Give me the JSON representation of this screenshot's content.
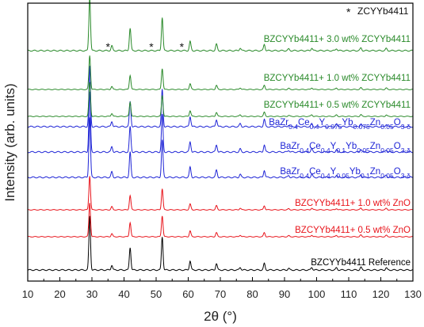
{
  "chart_data": {
    "type": "line",
    "xlabel": "2θ (°)",
    "ylabel": "Intensity (arb. units)",
    "xlim": [
      10,
      130
    ],
    "x_ticks": [
      10,
      20,
      30,
      40,
      50,
      60,
      70,
      80,
      90,
      100,
      110,
      120,
      130
    ],
    "y_ticks_shown": false,
    "legend": {
      "text": "ZCYYb4411",
      "marker": "*",
      "position": "top-right"
    },
    "impurity_marks": [
      35,
      48.5,
      58
    ],
    "peaks": [
      {
        "x": 29.3,
        "h": 1.0
      },
      {
        "x": 36.2,
        "h": 0.09
      },
      {
        "x": 41.9,
        "h": 0.42
      },
      {
        "x": 51.9,
        "h": 0.62
      },
      {
        "x": 60.6,
        "h": 0.17
      },
      {
        "x": 68.8,
        "h": 0.12
      },
      {
        "x": 76.2,
        "h": 0.05
      },
      {
        "x": 83.7,
        "h": 0.12
      },
      {
        "x": 91.3,
        "h": 0.03
      },
      {
        "x": 98.5,
        "h": 0.05
      },
      {
        "x": 106.2,
        "h": 0.04
      },
      {
        "x": 113.8,
        "h": 0.05
      },
      {
        "x": 121.7,
        "h": 0.04
      }
    ],
    "series": [
      {
        "label": "BZCYYb4411 Reference",
        "color": "#000000",
        "scale": 0.9
      },
      {
        "label": "BZCYYb4411+ 0.5 wt% ZnO",
        "color": "#e8141b",
        "scale": 1.15
      },
      {
        "label": "BZCYYb4411+ 1.0 wt% ZnO",
        "color": "#e8141b",
        "scale": 1.15
      },
      {
        "label": "BaZr0.4Ce0.4Y0.05Yb0.1Zn0.05O3-δ",
        "color": "#1e24d6",
        "scale": 0.85,
        "rich": [
          [
            "BaZr",
            ""
          ],
          [
            "0.4",
            "sub"
          ],
          [
            "Ce",
            ""
          ],
          [
            "0.4",
            "sub"
          ],
          [
            "Y",
            ""
          ],
          [
            "0.05",
            "sub"
          ],
          [
            "Yb",
            ""
          ],
          [
            "0.1",
            "sub"
          ],
          [
            "Zn",
            ""
          ],
          [
            "0.05",
            "sub"
          ],
          [
            "O",
            ""
          ],
          [
            "3-δ",
            "sub"
          ]
        ]
      },
      {
        "label": "BaZr0.4Ce0.4Y0.1Yb0.05Zn0.05O3-δ",
        "color": "#1e24d6",
        "scale": 0.85,
        "rich": [
          [
            "BaZr",
            ""
          ],
          [
            "0.4",
            "sub"
          ],
          [
            "Ce",
            ""
          ],
          [
            "0.4",
            "sub"
          ],
          [
            "Y",
            ""
          ],
          [
            "0.1",
            "sub"
          ],
          [
            "Yb",
            ""
          ],
          [
            "0.05",
            "sub"
          ],
          [
            "Zn",
            ""
          ],
          [
            "0.05",
            "sub"
          ],
          [
            "O",
            ""
          ],
          [
            "3-δ",
            "sub"
          ]
        ]
      },
      {
        "label": "BaZr0.4Ce0.4Y0.075Yb0.075Zn0.05O3-δ",
        "color": "#1e24d6",
        "scale": 0.85,
        "rich": [
          [
            "BaZr",
            ""
          ],
          [
            "0.4",
            "sub"
          ],
          [
            "Ce",
            ""
          ],
          [
            "0.4",
            "sub"
          ],
          [
            "Y",
            ""
          ],
          [
            "0.075",
            "sub"
          ],
          [
            "Yb",
            ""
          ],
          [
            "0.075",
            "sub"
          ],
          [
            "Zn",
            ""
          ],
          [
            "0.05",
            "sub"
          ],
          [
            "O",
            ""
          ],
          [
            "3-δ",
            "sub"
          ]
        ]
      },
      {
        "label": "BZCYYb4411+ 0.5 wt% ZCYYb4411",
        "color": "#2a8a2a",
        "scale": 1.1
      },
      {
        "label": "BZCYYb4411+ 1.0 wt% ZCYYb4411",
        "color": "#2a8a2a",
        "scale": 1.1
      },
      {
        "label": "BZCYYb4411+ 3.0 wt% ZCYYb4411",
        "color": "#2a8a2a",
        "scale": 1.6
      }
    ]
  }
}
